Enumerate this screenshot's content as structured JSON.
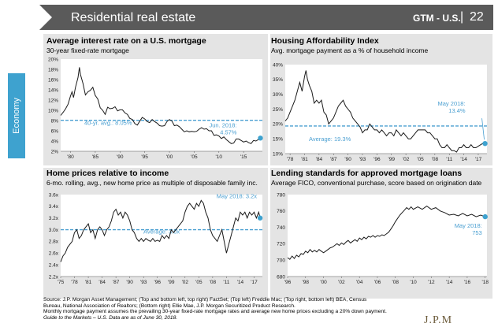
{
  "header": {
    "title": "Residential real estate",
    "section": "GTM - U.S.",
    "divider": "|",
    "page": "22"
  },
  "side_tab": {
    "label": "Economy"
  },
  "chart_data": [
    {
      "type": "line",
      "title": "Average interest rate on a U.S. mortgage",
      "subtitle": "30-year fixed-rate mortgage",
      "y_tick_labels": [
        "20%",
        "18%",
        "16%",
        "14%",
        "12%",
        "10%",
        "8%",
        "6%",
        "4%",
        "2%"
      ],
      "ylim": [
        2,
        20
      ],
      "x_tick_labels": [
        "'80",
        "'85",
        "'90",
        "'95",
        "'00",
        "'05",
        "'10",
        "'15"
      ],
      "xlim": [
        1978,
        2018.8
      ],
      "series": [
        {
          "x": [
            1978,
            1978.5,
            1979,
            1979.5,
            1980,
            1980.3,
            1980.6,
            1981,
            1981.5,
            1981.8,
            1982,
            1982.5,
            1983,
            1983.5,
            1984,
            1984.5,
            1985,
            1985.5,
            1986,
            1986.5,
            1987,
            1987.5,
            1988,
            1988.5,
            1989,
            1989.5,
            1990,
            1990.5,
            1991,
            1991.5,
            1992,
            1992.5,
            1993,
            1993.5,
            1994,
            1994.5,
            1995,
            1995.5,
            1996,
            1996.5,
            1997,
            1997.5,
            1998,
            1998.5,
            1999,
            1999.5,
            2000,
            2000.5,
            2001,
            2001.5,
            2002,
            2002.5,
            2003,
            2003.5,
            2004,
            2004.5,
            2005,
            2005.5,
            2006,
            2006.5,
            2007,
            2007.5,
            2008,
            2008.5,
            2009,
            2009.5,
            2010,
            2010.5,
            2011,
            2011.5,
            2012,
            2012.5,
            2013,
            2013.5,
            2014,
            2014.5,
            2015,
            2015.5,
            2016,
            2016.5,
            2017,
            2017.5,
            2018,
            2018.4
          ],
          "y": [
            9.0,
            9.6,
            10.3,
            11.2,
            12.8,
            13.6,
            12.5,
            14.5,
            16.4,
            18.4,
            17.0,
            15.3,
            13.0,
            13.6,
            13.9,
            14.5,
            12.9,
            12.2,
            10.5,
            10.0,
            9.2,
            10.6,
            10.3,
            10.4,
            10.7,
            9.9,
            10.1,
            10.1,
            9.5,
            9.2,
            8.4,
            8.2,
            7.4,
            7.1,
            7.9,
            8.6,
            8.3,
            7.8,
            7.6,
            8.2,
            7.8,
            7.5,
            7.0,
            6.9,
            7.0,
            7.8,
            8.2,
            7.9,
            7.0,
            7.1,
            6.8,
            6.3,
            5.8,
            6.0,
            5.8,
            5.9,
            5.8,
            5.9,
            6.3,
            6.6,
            6.3,
            6.4,
            6.0,
            6.0,
            5.1,
            5.2,
            5.0,
            4.5,
            4.8,
            4.3,
            3.9,
            3.5,
            3.6,
            4.4,
            4.4,
            4.1,
            3.8,
            4.0,
            3.7,
            3.5,
            4.1,
            4.0,
            4.3,
            4.57
          ]
        }
      ],
      "reference": {
        "value": 8.05,
        "label": "40-yr. avg.: 8.05%"
      },
      "endpoint": {
        "label_line1": "Jun. 2018:",
        "label_line2": "4.57%"
      }
    },
    {
      "type": "line",
      "title": "Housing Affordability Index",
      "subtitle": "Avg. mortgage payment as a % of household income",
      "y_tick_labels": [
        "40%",
        "35%",
        "30%",
        "25%",
        "20%",
        "15%",
        "10%"
      ],
      "ylim": [
        10,
        40
      ],
      "x_tick_labels": [
        "'78",
        "'81",
        "'84",
        "'87",
        "'90",
        "'93",
        "'96",
        "'99",
        "'02",
        "'05",
        "'08",
        "'11",
        "'14",
        "'17"
      ],
      "xlim": [
        1977,
        2018.8
      ],
      "series": [
        {
          "x": [
            1977,
            1977.5,
            1978,
            1978.5,
            1979,
            1979.5,
            1980,
            1980.5,
            1981,
            1981.3,
            1981.6,
            1982,
            1982.5,
            1983,
            1983.5,
            1984,
            1984.5,
            1985,
            1985.5,
            1986,
            1986.5,
            1987,
            1987.5,
            1988,
            1988.5,
            1989,
            1989.5,
            1990,
            1990.5,
            1991,
            1991.5,
            1992,
            1992.5,
            1993,
            1993.5,
            1994,
            1994.5,
            1995,
            1995.5,
            1996,
            1996.5,
            1997,
            1997.5,
            1998,
            1998.5,
            1999,
            1999.5,
            2000,
            2000.5,
            2001,
            2001.5,
            2002,
            2002.5,
            2003,
            2003.5,
            2004,
            2004.5,
            2005,
            2005.5,
            2006,
            2006.5,
            2007,
            2007.5,
            2008,
            2008.5,
            2009,
            2009.5,
            2010,
            2010.5,
            2011,
            2011.5,
            2012,
            2012.5,
            2013,
            2013.5,
            2014,
            2014.5,
            2015,
            2015.5,
            2016,
            2016.5,
            2017,
            2017.5,
            2018,
            2018.4
          ],
          "y": [
            21,
            22,
            24,
            26,
            28,
            31,
            34,
            31,
            36,
            38,
            35,
            33,
            31,
            27,
            28,
            27,
            28,
            24,
            23,
            20,
            21,
            22,
            24,
            26,
            27,
            28,
            26,
            25,
            24,
            22,
            21,
            20,
            19,
            17,
            18,
            18,
            20,
            19,
            18,
            18,
            17,
            18,
            17,
            16,
            17,
            17,
            16,
            18,
            17,
            16,
            17,
            16,
            15,
            15,
            16,
            17,
            18,
            18,
            18,
            18,
            17,
            17,
            16,
            15,
            15,
            13,
            12,
            12,
            13,
            12,
            11,
            11,
            10.5,
            12,
            12,
            13,
            12,
            12,
            13,
            12,
            12,
            12.5,
            13,
            13.5,
            13.4
          ]
        }
      ],
      "reference": {
        "value": 19.3,
        "label": "Average: 19.3%"
      },
      "endpoint": {
        "label_line1": "May 2018:",
        "label_line2": "13.4%"
      }
    },
    {
      "type": "line",
      "title": "Home prices relative to income",
      "subtitle": "6-mo. rolling, avg., new home price as multiple of disposable family inc.",
      "y_tick_labels": [
        "3.6x",
        "3.4x",
        "3.2x",
        "3.0x",
        "2.8x",
        "2.6x",
        "2.4x",
        "2.2x"
      ],
      "ylim": [
        2.2,
        3.6
      ],
      "x_tick_labels": [
        "'75",
        "'78",
        "'81",
        "'84",
        "'87",
        "'90",
        "'93",
        "'96",
        "'99",
        "'02",
        "'05",
        "'08",
        "'11",
        "'14",
        "'17"
      ],
      "xlim": [
        1975,
        2018.8
      ],
      "series": [
        {
          "x": [
            1975,
            1975.5,
            1976,
            1976.5,
            1977,
            1977.5,
            1978,
            1978.5,
            1979,
            1979.5,
            1980,
            1980.5,
            1981,
            1981.5,
            1982,
            1982.5,
            1983,
            1983.5,
            1984,
            1984.5,
            1985,
            1985.5,
            1986,
            1986.5,
            1987,
            1987.5,
            1988,
            1988.5,
            1989,
            1989.5,
            1990,
            1990.5,
            1991,
            1991.5,
            1992,
            1992.5,
            1993,
            1993.5,
            1994,
            1994.5,
            1995,
            1995.5,
            1996,
            1996.5,
            1997,
            1997.5,
            1998,
            1998.5,
            1999,
            1999.5,
            2000,
            2000.5,
            2001,
            2001.5,
            2002,
            2002.5,
            2003,
            2003.5,
            2004,
            2004.5,
            2005,
            2005.5,
            2006,
            2006.5,
            2007,
            2007.5,
            2008,
            2008.5,
            2009,
            2009.5,
            2010,
            2010.5,
            2011,
            2011.5,
            2012,
            2012.5,
            2013,
            2013.5,
            2014,
            2014.5,
            2015,
            2015.5,
            2016,
            2016.5,
            2017,
            2017.5,
            2018,
            2018.3
          ],
          "y": [
            2.45,
            2.55,
            2.6,
            2.7,
            2.75,
            2.8,
            2.95,
            3.0,
            2.85,
            2.9,
            3.0,
            3.05,
            3.1,
            2.95,
            3.0,
            2.85,
            3.0,
            3.05,
            3.0,
            2.9,
            3.0,
            3.05,
            3.15,
            3.3,
            3.35,
            3.25,
            3.3,
            3.2,
            3.3,
            3.25,
            3.15,
            3.0,
            2.95,
            2.85,
            2.8,
            2.85,
            2.8,
            2.85,
            2.82,
            2.8,
            2.85,
            2.8,
            2.82,
            2.8,
            2.9,
            2.85,
            2.9,
            2.85,
            3.0,
            2.95,
            3.0,
            3.05,
            3.1,
            3.15,
            3.3,
            3.4,
            3.45,
            3.4,
            3.35,
            3.45,
            3.4,
            3.5,
            3.45,
            3.3,
            3.2,
            3.0,
            2.9,
            2.85,
            2.8,
            2.9,
            3.0,
            2.8,
            2.6,
            2.75,
            2.9,
            3.05,
            3.2,
            3.15,
            3.3,
            3.25,
            3.3,
            3.2,
            3.3,
            3.25,
            3.3,
            3.2,
            3.3,
            3.2
          ]
        }
      ],
      "reference": {
        "value": 3.0,
        "label": "Average: 3.0x"
      },
      "endpoint": {
        "label_line1": "May 2018: 3.2x",
        "label_line2": ""
      }
    },
    {
      "type": "line",
      "title": "Lending standards for approved mortgage loans",
      "subtitle": "Average FICO, conventional purchase, score based on origination date",
      "y_tick_labels": [
        "780",
        "760",
        "740",
        "720",
        "700",
        "680"
      ],
      "ylim": [
        680,
        780
      ],
      "x_tick_labels": [
        "'96",
        "'98",
        "'00",
        "'02",
        "'04",
        "'06",
        "'08",
        "'10",
        "'12",
        "'14",
        "'16",
        "'18"
      ],
      "xlim": [
        1996,
        2018.2
      ],
      "series": [
        {
          "x": [
            1996,
            1996.25,
            1996.5,
            1996.75,
            1997,
            1997.25,
            1997.5,
            1997.75,
            1998,
            1998.25,
            1998.5,
            1998.75,
            1999,
            1999.25,
            1999.5,
            1999.75,
            2000,
            2000.25,
            2000.5,
            2000.75,
            2001,
            2001.25,
            2001.5,
            2001.75,
            2002,
            2002.25,
            2002.5,
            2002.75,
            2003,
            2003.25,
            2003.5,
            2003.75,
            2004,
            2004.25,
            2004.5,
            2004.75,
            2005,
            2005.25,
            2005.5,
            2005.75,
            2006,
            2006.25,
            2006.5,
            2006.75,
            2007,
            2007.25,
            2007.5,
            2007.75,
            2008,
            2008.25,
            2008.5,
            2008.75,
            2009,
            2009.25,
            2009.5,
            2009.75,
            2010,
            2010.5,
            2011,
            2011.5,
            2012,
            2012.5,
            2013,
            2013.5,
            2014,
            2014.5,
            2015,
            2015.5,
            2016,
            2016.5,
            2017,
            2017.5,
            2018
          ],
          "y": [
            703,
            701,
            705,
            702,
            706,
            704,
            708,
            707,
            711,
            709,
            713,
            710,
            712,
            710,
            713,
            711,
            709,
            711,
            713,
            715,
            716,
            718,
            720,
            718,
            721,
            719,
            722,
            724,
            721,
            723,
            725,
            723,
            727,
            725,
            728,
            726,
            729,
            728,
            730,
            728,
            730,
            729,
            731,
            730,
            732,
            734,
            738,
            742,
            747,
            751,
            755,
            758,
            761,
            764,
            762,
            765,
            762,
            765,
            762,
            766,
            762,
            764,
            760,
            758,
            755,
            756,
            754,
            757,
            754,
            756,
            753,
            755,
            753
          ]
        }
      ],
      "reference": null,
      "endpoint": {
        "label_line1": "May 2018:",
        "label_line2": "753"
      }
    }
  ],
  "footer": {
    "line1": "Source: J.P. Morgan Asset Management; (Top and bottom left, top right) FactSet; (Top left) Freddie Mac; (Top right, bottom left) BEA, Census",
    "line2": "Bureau, National Association of Realtors; (Bottom right) Ellie Mae, J.P. Morgan Securitized Product Research.",
    "line3": "Monthly mortgage payment assumes the prevailing 30-year fixed-rate mortgage rates and average new home prices excluding a 20% down payment.",
    "line4": "Guide to the Markets – U.S. Data are as of June 30, 2018."
  },
  "logo": {
    "text": "J.P.M"
  },
  "colors": {
    "header_bg": "#5a5a5a",
    "accent": "#3ea2cf",
    "line": "#1a1a1a",
    "reference": "#4a9fd1",
    "panel_bg": "#e4e4e4"
  }
}
